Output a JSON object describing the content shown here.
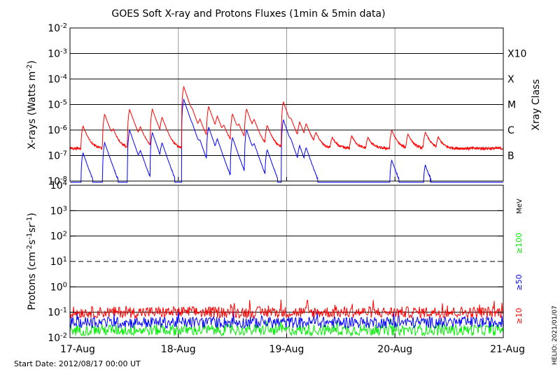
{
  "chart_data": [
    {
      "type": "line",
      "title": "GOES Soft X-ray and Protons Fluxes   (1min & 5min data)",
      "ylabel": "X-rays (Watts m-2)",
      "ylabel_parts": {
        "pre": "X-rays (Watts m",
        "sup": "-2",
        "post": ")"
      },
      "yscale": "log",
      "ylim": [
        1e-08,
        0.01
      ],
      "y_ticks": [
        {
          "mant": "10",
          "exp": "-2"
        },
        {
          "mant": "10",
          "exp": "-3"
        },
        {
          "mant": "10",
          "exp": "-4"
        },
        {
          "mant": "10",
          "exp": "-5"
        },
        {
          "mant": "10",
          "exp": "-6"
        },
        {
          "mant": "10",
          "exp": "-7"
        },
        {
          "mant": "10",
          "exp": "-8"
        }
      ],
      "right_axis_label": "Xray Class",
      "classes": [
        {
          "label": "X10",
          "exp": -3
        },
        {
          "label": "X",
          "exp": -4
        },
        {
          "label": "M",
          "exp": -5
        },
        {
          "label": "C",
          "exp": -6
        },
        {
          "label": "B",
          "exp": -7
        }
      ],
      "xlim": [
        "2012-08-17",
        "2012-08-21"
      ],
      "x_ticks": [
        "17-Aug",
        "18-Aug",
        "19-Aug",
        "20-Aug",
        "21-Aug"
      ],
      "series": [
        {
          "color": "#ff0000",
          "flares": [
            {
              "t": 0.12,
              "p": -5.9
            },
            {
              "t": 0.32,
              "p": -5.4
            },
            {
              "t": 0.4,
              "p": -6.3
            },
            {
              "t": 0.55,
              "p": -5.2
            },
            {
              "t": 0.65,
              "p": -6.1
            },
            {
              "t": 0.76,
              "p": -5.2
            },
            {
              "t": 0.85,
              "p": -5.6
            },
            {
              "t": 1.05,
              "p": -4.3
            },
            {
              "t": 1.13,
              "p": -5.8
            },
            {
              "t": 1.2,
              "p": -5.8
            },
            {
              "t": 1.28,
              "p": -5.1
            },
            {
              "t": 1.36,
              "p": -5.6
            },
            {
              "t": 1.42,
              "p": -6.1
            },
            {
              "t": 1.5,
              "p": -5.4
            },
            {
              "t": 1.56,
              "p": -6.1
            },
            {
              "t": 1.63,
              "p": -5.2
            },
            {
              "t": 1.7,
              "p": -5.8
            },
            {
              "t": 1.82,
              "p": -5.9
            },
            {
              "t": 1.97,
              "p": -4.9
            },
            {
              "t": 2.04,
              "p": -6.0
            },
            {
              "t": 2.12,
              "p": -5.8
            },
            {
              "t": 2.18,
              "p": -5.9
            },
            {
              "t": 2.27,
              "p": -6.3
            },
            {
              "t": 2.42,
              "p": -6.5
            },
            {
              "t": 2.6,
              "p": -6.4
            },
            {
              "t": 2.75,
              "p": -6.5
            },
            {
              "t": 2.97,
              "p": -6.1
            },
            {
              "t": 3.12,
              "p": -6.3
            },
            {
              "t": 3.28,
              "p": -6.2
            },
            {
              "t": 3.4,
              "p": -6.5
            }
          ]
        },
        {
          "color": "#0000ff",
          "flares": [
            {
              "t": 0.12,
              "p": -6.9
            },
            {
              "t": 0.32,
              "p": -6.5
            },
            {
              "t": 0.55,
              "p": -6.0
            },
            {
              "t": 0.65,
              "p": -7.0
            },
            {
              "t": 0.76,
              "p": -6.1
            },
            {
              "t": 0.85,
              "p": -6.6
            },
            {
              "t": 1.05,
              "p": -4.8
            },
            {
              "t": 1.13,
              "p": -6.7
            },
            {
              "t": 1.2,
              "p": -6.8
            },
            {
              "t": 1.28,
              "p": -5.9
            },
            {
              "t": 1.36,
              "p": -6.5
            },
            {
              "t": 1.5,
              "p": -6.3
            },
            {
              "t": 1.63,
              "p": -6.0
            },
            {
              "t": 1.7,
              "p": -6.8
            },
            {
              "t": 1.82,
              "p": -6.8
            },
            {
              "t": 1.97,
              "p": -5.6
            },
            {
              "t": 2.04,
              "p": -7.0
            },
            {
              "t": 2.12,
              "p": -6.7
            },
            {
              "t": 2.18,
              "p": -6.8
            },
            {
              "t": 2.97,
              "p": -7.2
            },
            {
              "t": 3.28,
              "p": -7.4
            }
          ]
        }
      ]
    },
    {
      "type": "line",
      "ylabel": "Protons (cm-2 s-1 sr-1)",
      "ylabel_parts": [
        {
          "t": "Protons (cm",
          "s": false
        },
        {
          "t": "-2",
          "s": true
        },
        {
          "t": "s",
          "s": false
        },
        {
          "t": "-1",
          "s": true
        },
        {
          "t": "sr",
          "s": false
        },
        {
          "t": "-1",
          "s": true
        },
        {
          "t": ")",
          "s": false
        }
      ],
      "yscale": "log",
      "ylim": [
        0.01,
        10000
      ],
      "y_ticks": [
        {
          "mant": "10",
          "exp": "4"
        },
        {
          "mant": "10",
          "exp": "3"
        },
        {
          "mant": "10",
          "exp": "2"
        },
        {
          "mant": "10",
          "exp": "1"
        },
        {
          "mant": "10",
          "exp": "0"
        },
        {
          "mant": "10",
          "exp": "-1"
        },
        {
          "mant": "10",
          "exp": "-2"
        }
      ],
      "threshold": {
        "value": 10,
        "style": "dashed"
      },
      "unit": "MeV",
      "x_ticks": [
        "17-Aug",
        "18-Aug",
        "19-Aug",
        "20-Aug",
        "21-Aug"
      ],
      "series": [
        {
          "name": "≥100",
          "color": "#00ee00",
          "level": 0.02
        },
        {
          "name": "≥50",
          "color": "#0000ff",
          "level": 0.04
        },
        {
          "name": "≥10",
          "color": "#ff0000",
          "level": 0.1
        }
      ]
    }
  ],
  "footer": {
    "start_date": "Start Date: 2012/08/17 00:00 UT",
    "credit": "HELIO: 2021/01/07"
  },
  "colors": {
    "axes": "#000000",
    "day_lines": "#999999",
    "xray_long": "#ff0000",
    "xray_short": "#0000ff"
  }
}
